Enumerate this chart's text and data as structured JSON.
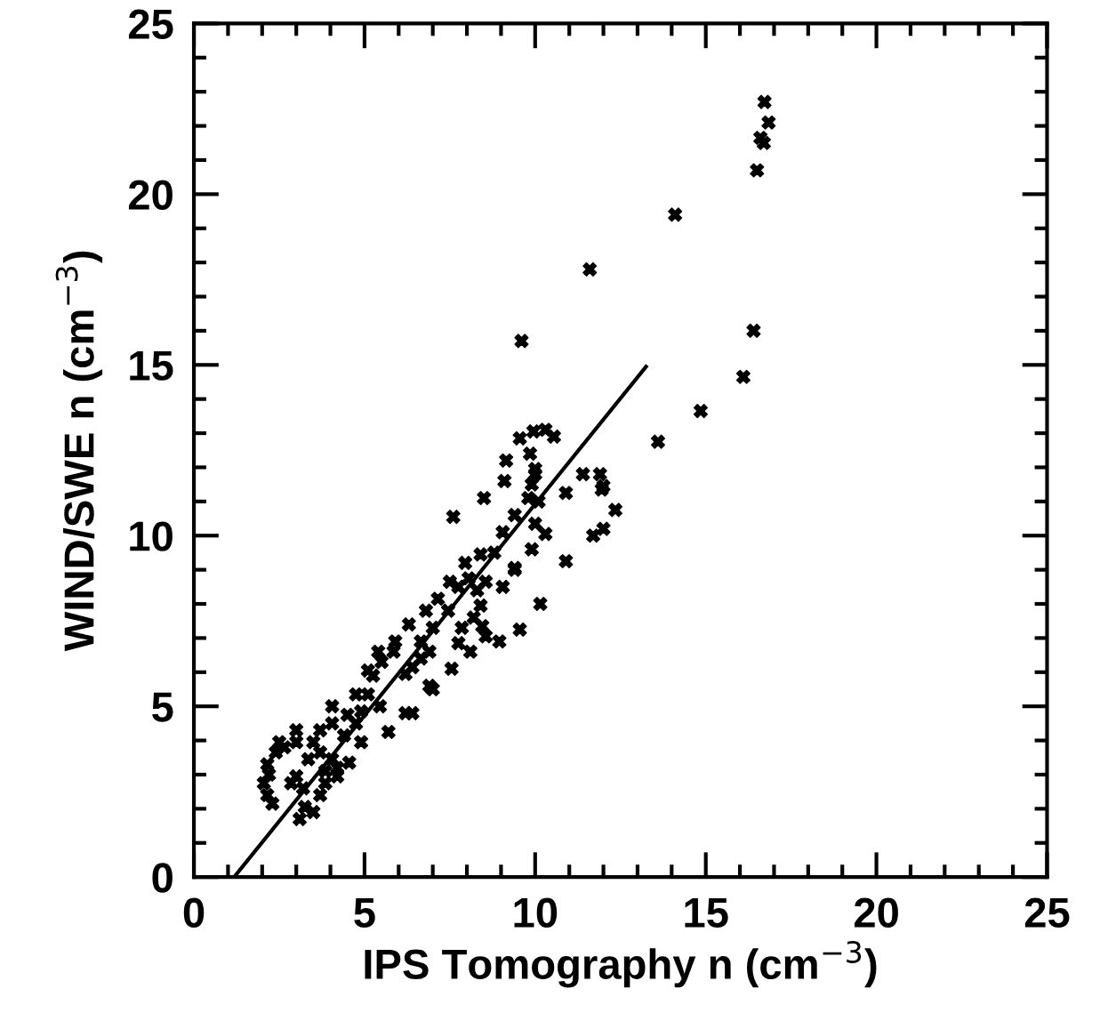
{
  "chart_data": {
    "type": "scatter",
    "xlabel": "IPS Tomography n (cm$^{−3}$)",
    "ylabel": "WIND/SWE n (cm$^{−3}$)",
    "xlim": [
      0,
      25
    ],
    "ylim": [
      0,
      25
    ],
    "xticks": [
      0,
      {
        "value": 1,
        "label": null
      },
      {
        "value": 2,
        "label": null
      },
      {
        "value": 3,
        "label": null
      },
      {
        "value": 4,
        "label": null
      },
      5,
      {
        "value": 6,
        "label": null
      },
      {
        "value": 7,
        "label": null
      },
      {
        "value": 8,
        "label": null
      },
      {
        "value": 9,
        "label": null
      },
      10,
      {
        "value": 11,
        "label": null
      },
      {
        "value": 12,
        "label": null
      },
      {
        "value": 13,
        "label": null
      },
      {
        "value": 14,
        "label": null
      },
      15,
      {
        "value": 16,
        "label": null
      },
      {
        "value": 17,
        "label": null
      },
      {
        "value": 18,
        "label": null
      },
      {
        "value": 19,
        "label": null
      },
      20,
      {
        "value": 21,
        "label": null
      },
      {
        "value": 22,
        "label": null
      },
      {
        "value": 23,
        "label": null
      },
      {
        "value": 24,
        "label": null
      },
      25
    ],
    "yticks": [
      0,
      {
        "value": 1,
        "label": null
      },
      {
        "value": 2,
        "label": null
      },
      {
        "value": 3,
        "label": null
      },
      {
        "value": 4,
        "label": null
      },
      5,
      {
        "value": 6,
        "label": null
      },
      {
        "value": 7,
        "label": null
      },
      {
        "value": 8,
        "label": null
      },
      {
        "value": 9,
        "label": null
      },
      10,
      {
        "value": 11,
        "label": null
      },
      {
        "value": 12,
        "label": null
      },
      {
        "value": 13,
        "label": null
      },
      {
        "value": 14,
        "label": null
      },
      15,
      {
        "value": 16,
        "label": null
      },
      {
        "value": 17,
        "label": null
      },
      {
        "value": 18,
        "label": null
      },
      {
        "value": 19,
        "label": null
      },
      20,
      {
        "value": 21,
        "label": null
      },
      {
        "value": 22,
        "label": null
      },
      {
        "value": 23,
        "label": null
      },
      {
        "value": 24,
        "label": null
      },
      25
    ],
    "grid": false,
    "legend": false,
    "marker": "cross",
    "series": [
      {
        "color": "#000000",
        "x": [
          16.72,
          16.84,
          16.6,
          16.7,
          16.5,
          14.1,
          11.6,
          16.4,
          16.1,
          14.85,
          13.6,
          9.6,
          9.55,
          9.95,
          10.3,
          10.55,
          9.15,
          9.1,
          9.85,
          10.0,
          10.0,
          9.9,
          9.8,
          10.1,
          11.4,
          11.9,
          12.0,
          11.95,
          10.9,
          12.35,
          8.5,
          7.6,
          9.4,
          9.05,
          10.0,
          10.3,
          11.7,
          12.0,
          9.9,
          10.9,
          7.95,
          8.4,
          8.8,
          9.4,
          10.15,
          9.55,
          8.95,
          8.55,
          8.1,
          7.55,
          7.0,
          6.9,
          6.2,
          6.4,
          5.7,
          4.05,
          5.4,
          6.3,
          5.9,
          9.4,
          9.05,
          8.55,
          7.5,
          7.45,
          7.0,
          6.65,
          6.65,
          6.2,
          5.25,
          5.1,
          4.9,
          5.45,
          4.75,
          4.9,
          4.4,
          4.55,
          4.2,
          3.85,
          3.7,
          3.25,
          3.1,
          3.5,
          3.2,
          3.0,
          2.85,
          3.35,
          3.5,
          3.0,
          2.65,
          2.4,
          2.15,
          2.05,
          2.15,
          2.3,
          2.2,
          2.5,
          3.0,
          3.7,
          4.05,
          4.5,
          3.7,
          4.05,
          3.85,
          4.2,
          4.75,
          5.1,
          5.5,
          5.85,
          6.8,
          7.15,
          7.75,
          8.05,
          8.3,
          8.4,
          8.2,
          7.85,
          7.75,
          8.45,
          6.9,
          6.4
        ],
        "values": [
          22.7,
          22.1,
          21.65,
          21.5,
          20.7,
          19.4,
          17.8,
          16.0,
          14.65,
          13.65,
          12.75,
          15.7,
          12.85,
          13.05,
          13.1,
          12.9,
          12.2,
          11.6,
          12.4,
          11.95,
          11.8,
          11.5,
          11.1,
          11.0,
          11.8,
          11.8,
          11.45,
          11.35,
          11.25,
          10.75,
          11.1,
          10.55,
          10.6,
          10.1,
          10.35,
          10.05,
          10.0,
          10.2,
          9.6,
          9.25,
          9.2,
          9.45,
          9.5,
          9.05,
          8.0,
          7.25,
          6.9,
          7.05,
          6.6,
          6.1,
          5.5,
          5.6,
          4.8,
          4.8,
          4.25,
          5.0,
          6.6,
          7.4,
          6.9,
          9.0,
          8.5,
          8.65,
          8.65,
          7.8,
          7.3,
          6.9,
          6.4,
          5.95,
          5.9,
          5.35,
          4.85,
          5.0,
          4.5,
          3.95,
          4.15,
          3.35,
          2.95,
          2.75,
          2.4,
          2.05,
          1.7,
          1.9,
          2.6,
          2.95,
          2.75,
          3.45,
          3.95,
          3.95,
          3.8,
          3.65,
          3.3,
          2.75,
          2.4,
          2.15,
          3.0,
          3.95,
          4.3,
          4.3,
          4.5,
          4.75,
          3.65,
          3.45,
          3.1,
          3.2,
          5.35,
          6.05,
          6.3,
          6.6,
          7.8,
          8.15,
          8.5,
          8.75,
          8.4,
          7.95,
          7.6,
          7.3,
          6.85,
          7.35,
          6.6,
          6.15
        ]
      },
      {
        "type": "line",
        "color": "#000000",
        "marker": "none",
        "line_style": "solid",
        "x": [
          1.18,
          13.25
        ],
        "values": [
          0,
          14.95
        ]
      }
    ]
  }
}
